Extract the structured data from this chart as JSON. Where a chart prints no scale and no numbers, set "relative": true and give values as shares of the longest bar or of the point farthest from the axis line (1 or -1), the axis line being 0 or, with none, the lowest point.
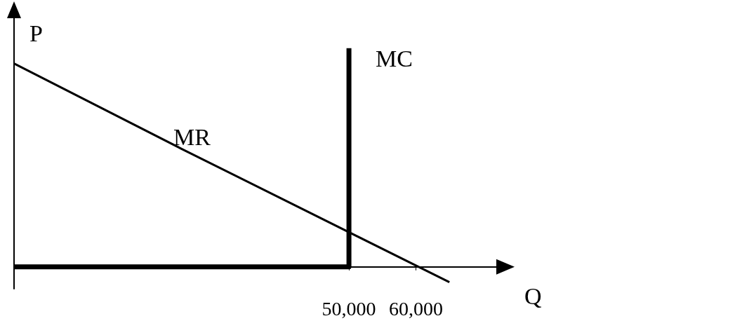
{
  "chart_data": {
    "type": "line",
    "relative": true,
    "xlabel": "Q",
    "ylabel": "P",
    "xlim": [
      0,
      72000
    ],
    "xticks": [
      {
        "value": 50000,
        "label": "50,000"
      },
      {
        "value": 60000,
        "label": "60,000"
      }
    ],
    "grid": false,
    "legend": false,
    "marker": "none",
    "line_style": "solid",
    "series": [
      {
        "name": "MR",
        "color": "#000000",
        "x": [
          0,
          25000,
          65000
        ],
        "values": [
          0.93,
          0.54,
          -0.07
        ]
      },
      {
        "name": "MC",
        "color": "#000000",
        "x": [
          0,
          50000,
          50000
        ],
        "values": [
          0,
          0,
          1
        ]
      }
    ]
  }
}
